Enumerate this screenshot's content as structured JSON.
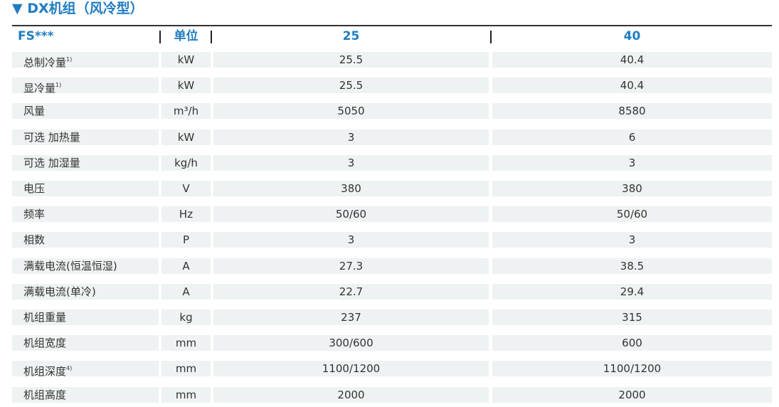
{
  "title": "▼ DX机组（风冷型）",
  "table": {
    "header": [
      "FS***",
      "单位",
      "25",
      "40"
    ],
    "rows": [
      {
        "label": "总制冷量",
        "note": "1)",
        "unit": "kW",
        "cells": [
          "25.5",
          "40.4"
        ]
      },
      {
        "label": "显冷量",
        "note": "1)",
        "unit": "kW",
        "cells": [
          "25.5",
          "40.4"
        ]
      },
      {
        "label": "风量",
        "unit": "m³/h",
        "cells": [
          "5050",
          "8580"
        ]
      },
      {
        "label": "可选 加热量",
        "unit": "kW",
        "cells": [
          "3",
          "6"
        ]
      },
      {
        "label": "可选 加湿量",
        "unit": "kg/h",
        "cells": [
          "3",
          "3"
        ]
      },
      {
        "label": "电压",
        "unit": "V",
        "cells": [
          "380",
          "380"
        ]
      },
      {
        "label": "频率",
        "unit": "Hz",
        "cells": [
          "50/60",
          "50/60"
        ]
      },
      {
        "label": "相数",
        "unit": "P",
        "cells": [
          "3",
          "3"
        ]
      },
      {
        "label": "满载电流(恒温恒湿)",
        "unit": "A",
        "cells": [
          "27.3",
          "38.5"
        ]
      },
      {
        "label": "满载电流(单冷)",
        "unit": "A",
        "cells": [
          "22.7",
          "29.4"
        ]
      },
      {
        "label": "机组重量",
        "unit": "kg",
        "cells": [
          "237",
          "315"
        ]
      },
      {
        "label": "机组宽度",
        "unit": "mm",
        "cells": [
          "300/600",
          "600"
        ]
      },
      {
        "label": "机组深度",
        "note": "4)",
        "unit": "mm",
        "cells": [
          "1100/1200",
          "1100/1200"
        ]
      },
      {
        "label": "机组高度",
        "unit": "mm",
        "cells": [
          "2000",
          "2000"
        ]
      }
    ]
  }
}
